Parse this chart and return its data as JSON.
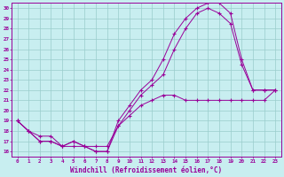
{
  "xlabel": "Windchill (Refroidissement éolien,°C)",
  "bg_color": "#c8eef0",
  "line_color": "#990099",
  "grid_color": "#99cccc",
  "xlim": [
    -0.5,
    23.5
  ],
  "ylim": [
    15.5,
    30.5
  ],
  "xticks": [
    0,
    1,
    2,
    3,
    4,
    5,
    6,
    7,
    8,
    9,
    10,
    11,
    12,
    13,
    14,
    15,
    16,
    17,
    18,
    19,
    20,
    21,
    22,
    23
  ],
  "yticks": [
    16,
    17,
    18,
    19,
    20,
    21,
    22,
    23,
    24,
    25,
    26,
    27,
    28,
    29,
    30
  ],
  "line1_x": [
    0,
    1,
    2,
    3,
    4,
    5,
    6,
    7,
    8,
    9,
    10,
    11,
    12,
    13,
    14,
    15,
    16,
    17,
    18,
    19,
    20,
    21,
    22,
    23
  ],
  "line1_y": [
    19,
    18,
    17,
    17,
    16.5,
    17,
    16.5,
    16,
    16,
    19,
    20.5,
    22,
    23,
    25,
    27.5,
    29,
    30,
    30.5,
    30.5,
    29.5,
    25,
    22,
    22,
    22
  ],
  "line2_x": [
    0,
    1,
    2,
    3,
    4,
    5,
    6,
    7,
    8,
    9,
    10,
    11,
    12,
    13,
    14,
    15,
    16,
    17,
    18,
    19,
    20,
    21,
    22,
    23
  ],
  "line2_y": [
    19,
    18,
    17,
    17,
    16.5,
    17,
    16.5,
    16,
    16,
    18.5,
    20,
    21.5,
    22.5,
    23.5,
    26,
    28,
    29.5,
    30,
    29.5,
    28.5,
    24.5,
    22,
    22,
    22
  ],
  "line3_x": [
    0,
    1,
    2,
    3,
    4,
    5,
    6,
    7,
    8,
    9,
    10,
    11,
    12,
    13,
    14,
    15,
    16,
    17,
    18,
    19,
    20,
    21,
    22,
    23
  ],
  "line3_y": [
    19,
    18,
    17.5,
    17.5,
    16.5,
    16.5,
    16.5,
    16.5,
    16.5,
    18.5,
    19.5,
    20.5,
    21,
    21.5,
    21.5,
    21,
    21,
    21,
    21,
    21,
    21,
    21,
    21,
    22
  ]
}
